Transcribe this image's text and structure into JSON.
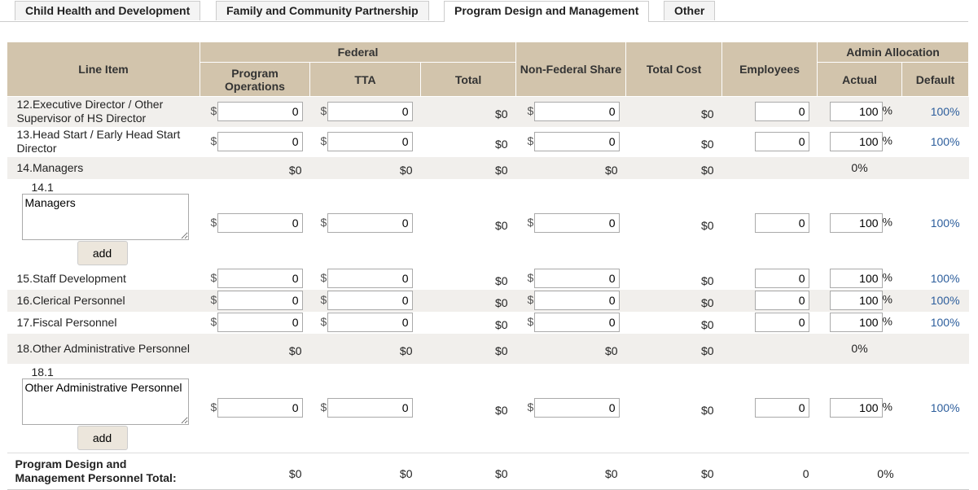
{
  "tabs": [
    "Child Health and Development",
    "Family and Community Partnership",
    "Program Design and Management",
    "Other"
  ],
  "currency_symbol": "$",
  "percent_sign": "%",
  "table": {
    "headers": {
      "line_item": "Line Item",
      "federal": "Federal",
      "program_operations": "Program Operations",
      "tta": "TTA",
      "total": "Total",
      "non_federal_share": "Non-Federal Share",
      "total_cost": "Total Cost",
      "employees": "Employees",
      "admin_allocation": "Admin Allocation",
      "actual": "Actual",
      "default": "Default"
    },
    "rows": [
      {
        "label": "12.Executive Director / Other Supervisor of HS Director",
        "program_operations": 0,
        "tta": 0,
        "total": "$0",
        "non_federal": 0,
        "total_cost": "$0",
        "employees": 0,
        "actual": 100,
        "default": "100%"
      },
      {
        "label": "13.Head Start / Early Head Start Director",
        "program_operations": 0,
        "tta": 0,
        "total": "$0",
        "non_federal": 0,
        "total_cost": "$0",
        "employees": 0,
        "actual": 100,
        "default": "100%"
      },
      {
        "label": "14.Managers",
        "program_operations": "$0",
        "tta": "$0",
        "total": "$0",
        "non_federal": "$0",
        "total_cost": "$0",
        "actual": "0%"
      },
      {
        "number": "14.1",
        "description": "Managers",
        "button": "add",
        "program_operations": 0,
        "tta": 0,
        "total": "$0",
        "non_federal": 0,
        "total_cost": "$0",
        "employees": 0,
        "actual": 100,
        "default": "100%"
      },
      {
        "label": "15.Staff Development",
        "program_operations": 0,
        "tta": 0,
        "total": "$0",
        "non_federal": 0,
        "total_cost": "$0",
        "employees": 0,
        "actual": 100,
        "default": "100%"
      },
      {
        "label": "16.Clerical Personnel",
        "program_operations": 0,
        "tta": 0,
        "total": "$0",
        "non_federal": 0,
        "total_cost": "$0",
        "employees": 0,
        "actual": 100,
        "default": "100%"
      },
      {
        "label": "17.Fiscal Personnel",
        "program_operations": 0,
        "tta": 0,
        "total": "$0",
        "non_federal": 0,
        "total_cost": "$0",
        "employees": 0,
        "actual": 100,
        "default": "100%"
      },
      {
        "label": "18.Other Administrative Personnel",
        "program_operations": "$0",
        "tta": "$0",
        "total": "$0",
        "non_federal": "$0",
        "total_cost": "$0",
        "actual": "0%"
      },
      {
        "number": "18.1",
        "description": "Other Administrative Personnel",
        "button": "add",
        "program_operations": 0,
        "tta": 0,
        "total": "$0",
        "non_federal": 0,
        "total_cost": "$0",
        "employees": 0,
        "actual": 100,
        "default": "100%"
      }
    ],
    "total": {
      "label": "Program Design and Management Personnel Total:",
      "program_operations": "$0",
      "tta": "$0",
      "total": "$0",
      "non_federal": "$0",
      "total_cost": "$0",
      "employees": 0,
      "actual": "0%"
    }
  }
}
